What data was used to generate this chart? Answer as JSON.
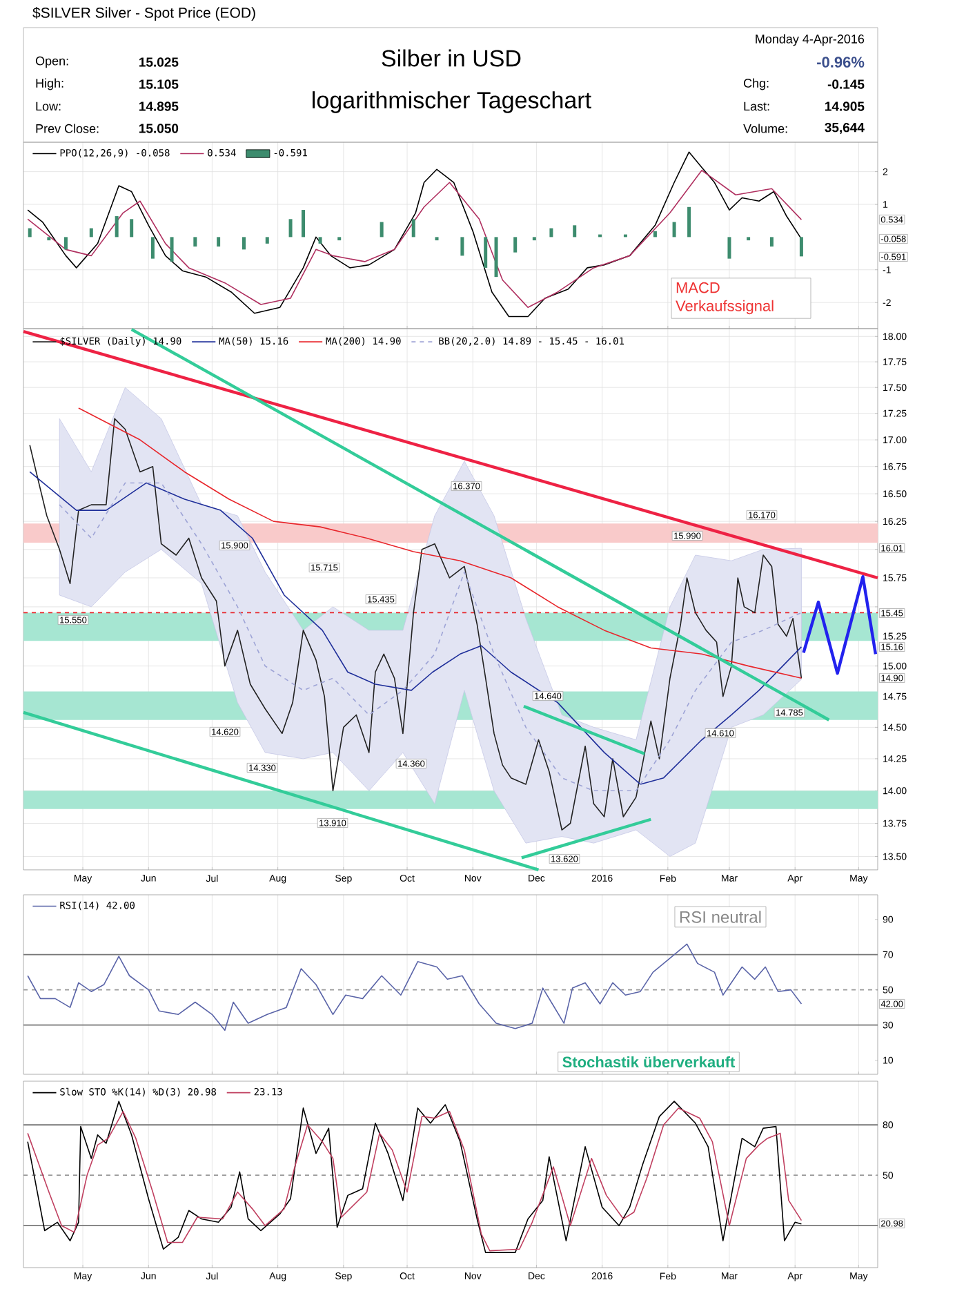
{
  "chart_data": [
    {
      "type": "line",
      "title": "Silber in USD",
      "subtitle": "logarithmischer Tageschart",
      "xlim": [
        "2015-04-03",
        "2016-05-10"
      ],
      "xticks": [
        {
          "value": "2015-05-01",
          "label": null
        },
        {
          "value": "2015-06-01",
          "label": null
        },
        {
          "value": "2015-07-01",
          "label": null
        },
        {
          "value": "2015-08-01",
          "label": null
        },
        {
          "value": "2015-09-01",
          "label": null
        },
        {
          "value": "2015-10-01",
          "label": null
        },
        {
          "value": "2015-11-01",
          "label": null
        },
        {
          "value": "2015-12-01",
          "label": null
        },
        {
          "value": "2016-01-01",
          "label": null
        },
        {
          "value": "2016-02-01",
          "label": null
        },
        {
          "value": "2016-03-01",
          "label": null
        },
        {
          "value": "2016-04-01",
          "label": null
        },
        {
          "value": "2016-05-01",
          "label": null
        }
      ],
      "ylim": [
        -2.8,
        2.9
      ],
      "yticks": [
        -2,
        -1,
        1,
        2
      ],
      "tick_labels": "y",
      "grid": true,
      "legend": "top left",
      "series": [
        {
          "name": "PPO(12,26,9) -0.058",
          "color": "#000000",
          "x": [
            "2015-04-05",
            "2015-04-12",
            "2015-04-23",
            "2015-04-28",
            "2015-05-08",
            "2015-05-18",
            "2015-05-24",
            "2015-06-01",
            "2015-06-09",
            "2015-06-17",
            "2015-06-28",
            "2015-07-10",
            "2015-07-21",
            "2015-08-02",
            "2015-08-13",
            "2015-08-19",
            "2015-08-26",
            "2015-09-04",
            "2015-09-13",
            "2015-09-25",
            "2015-10-05",
            "2015-10-09",
            "2015-10-15",
            "2015-10-23",
            "2015-11-01",
            "2015-11-10",
            "2015-11-18",
            "2015-11-27",
            "2015-12-05",
            "2015-12-16",
            "2015-12-25",
            "2016-01-02",
            "2016-01-14",
            "2016-01-26",
            "2016-02-04",
            "2016-02-11",
            "2016-02-17",
            "2016-02-23",
            "2016-03-01",
            "2016-03-07",
            "2016-03-15",
            "2016-03-22",
            "2016-03-28",
            "2016-04-04"
          ],
          "values": [
            0.83,
            0.46,
            -0.57,
            -0.94,
            -0.2,
            1.57,
            1.39,
            0.36,
            -0.57,
            -1.03,
            -1.22,
            -1.68,
            -2.33,
            -2.15,
            -0.94,
            0.0,
            -0.57,
            -0.94,
            -0.85,
            -0.38,
            0.74,
            1.67,
            2.07,
            1.67,
            0.18,
            -1.68,
            -2.43,
            -2.43,
            -1.87,
            -1.59,
            -0.94,
            -0.85,
            -0.57,
            0.36,
            1.67,
            2.6,
            2.13,
            1.67,
            0.83,
            1.2,
            1.1,
            1.39,
            0.64,
            -0.058
          ]
        },
        {
          "name": "0.534",
          "color": "#b03060",
          "x": [
            "2015-04-05",
            "2015-04-23",
            "2015-05-05",
            "2015-05-20",
            "2015-05-28",
            "2015-06-09",
            "2015-06-20",
            "2015-07-07",
            "2015-07-24",
            "2015-08-07",
            "2015-08-19",
            "2015-08-27",
            "2015-09-11",
            "2015-09-25",
            "2015-10-09",
            "2015-10-21",
            "2015-11-04",
            "2015-11-15",
            "2015-11-27",
            "2015-12-11",
            "2015-12-28",
            "2016-01-14",
            "2016-02-02",
            "2016-02-17",
            "2016-03-04",
            "2016-03-21",
            "2016-04-04"
          ],
          "values": [
            0.55,
            -0.38,
            -0.57,
            0.74,
            1.1,
            -0.2,
            -0.94,
            -1.4,
            -2.06,
            -1.87,
            -0.38,
            -0.57,
            -0.75,
            -0.38,
            0.92,
            1.67,
            0.55,
            -1.31,
            -2.15,
            -1.68,
            -0.94,
            -0.57,
            0.74,
            2.04,
            1.29,
            1.48,
            0.534
          ]
        },
        {
          "name": "-0.591",
          "type": "bar",
          "color": "#3d8c6e",
          "x": [
            "2015-04-06",
            "2015-04-15",
            "2015-04-23",
            "2015-05-05",
            "2015-05-17",
            "2015-05-24",
            "2015-06-03",
            "2015-06-12",
            "2015-06-23",
            "2015-07-04",
            "2015-07-16",
            "2015-07-27",
            "2015-08-07",
            "2015-08-13",
            "2015-08-21",
            "2015-08-30",
            "2015-09-11",
            "2015-09-19",
            "2015-10-04",
            "2015-10-15",
            "2015-10-27",
            "2015-11-07",
            "2015-11-12",
            "2015-11-21",
            "2015-11-30",
            "2015-12-08",
            "2015-12-19",
            "2015-12-31",
            "2016-01-12",
            "2016-01-26",
            "2016-02-04",
            "2016-02-11",
            "2016-02-20",
            "2016-03-01",
            "2016-03-10",
            "2016-03-21",
            "2016-04-04"
          ],
          "values": [
            0.27,
            -0.1,
            -0.38,
            0.27,
            0.64,
            0.55,
            -0.66,
            -0.75,
            -0.29,
            -0.29,
            -0.38,
            -0.2,
            0.55,
            0.83,
            -0.2,
            -0.1,
            0.0,
            0.46,
            0.55,
            -0.1,
            -0.57,
            -0.94,
            -1.22,
            -0.47,
            -0.1,
            0.27,
            0.36,
            0.08,
            0.08,
            0.18,
            0.46,
            0.92,
            0.0,
            -0.66,
            -0.1,
            -0.29,
            -0.591
          ]
        }
      ],
      "annotations": [
        "$SILVER Silver - Spot Price (EOD)",
        "Open:",
        "15.025",
        "High:",
        "15.105",
        "Low:",
        "14.895",
        "Prev Close:",
        "15.050",
        "Monday 4-Apr-2016",
        "-0.96%",
        "Chg:",
        "-0.145",
        "Last:",
        "14.905",
        "Volume:",
        "35,644",
        "MACD Verkaufssignal",
        "0.534",
        "-0.058",
        "-0.591"
      ]
    },
    {
      "type": "line",
      "log": true,
      "xlim": [
        "2015-04-03",
        "2016-05-10"
      ],
      "xticks": [
        {
          "value": "2015-05-01",
          "label": "May"
        },
        {
          "value": "2015-06-01",
          "label": "Jun"
        },
        {
          "value": "2015-07-01",
          "label": "Jul"
        },
        {
          "value": "2015-08-01",
          "label": "Aug"
        },
        {
          "value": "2015-09-01",
          "label": "Sep"
        },
        {
          "value": "2015-10-01",
          "label": "Oct"
        },
        {
          "value": "2015-11-01",
          "label": "Nov"
        },
        {
          "value": "2015-12-01",
          "label": "Dec"
        },
        {
          "value": "2016-01-01",
          "label": "2016"
        },
        {
          "value": "2016-02-01",
          "label": "Feb"
        },
        {
          "value": "2016-03-01",
          "label": "Mar"
        },
        {
          "value": "2016-04-01",
          "label": "Apr"
        },
        {
          "value": "2016-05-01",
          "label": "May"
        }
      ],
      "ylim": [
        13.4,
        18.08
      ],
      "yticks": [
        {
          "value": 13.5,
          "label": "13.50"
        },
        {
          "value": 13.75,
          "label": "13.75"
        },
        {
          "value": 14.0,
          "label": "14.00"
        },
        {
          "value": 14.25,
          "label": "14.25"
        },
        {
          "value": 14.5,
          "label": "14.50"
        },
        {
          "value": 14.75,
          "label": "14.75"
        },
        {
          "value": 15.0,
          "label": "15.00"
        },
        {
          "value": 15.25,
          "label": "15.25"
        },
        {
          "value": 15.5,
          "label": null
        },
        {
          "value": 15.75,
          "label": "15.75"
        },
        {
          "value": 16.0,
          "label": null
        },
        {
          "value": 16.25,
          "label": "16.25"
        },
        {
          "value": 16.5,
          "label": "16.50"
        },
        {
          "value": 16.75,
          "label": "16.75"
        },
        {
          "value": 17.0,
          "label": "17.00"
        },
        {
          "value": 17.25,
          "label": "17.25"
        },
        {
          "value": 17.5,
          "label": "17.50"
        },
        {
          "value": 17.75,
          "label": "17.75"
        },
        {
          "value": 18.0,
          "label": "18.00"
        }
      ],
      "grid": true,
      "legend": "top left",
      "bands": [
        {
          "axis": "y",
          "from": 16.06,
          "to": 16.23,
          "color": "#f9caca"
        },
        {
          "axis": "y",
          "from": 15.21,
          "to": 15.45,
          "color": "#a6e6d2"
        },
        {
          "axis": "y",
          "from": 14.56,
          "to": 14.79,
          "color": "#a6e6d2"
        },
        {
          "axis": "y",
          "from": 13.86,
          "to": 14.0,
          "color": "#a6e6d2"
        }
      ],
      "ref_lines": [
        {
          "axis": "y",
          "value": 15.45,
          "color": "#e8262b",
          "line_style": "dashed"
        }
      ],
      "series": [
        {
          "name": "$SILVER (Daily) 14.90",
          "color": "#222222",
          "x": [
            "2015-04-06",
            "2015-04-09",
            "2015-04-14",
            "2015-04-20",
            "2015-04-25",
            "2015-04-29",
            "2015-05-05",
            "2015-05-12",
            "2015-05-16",
            "2015-05-21",
            "2015-05-28",
            "2015-06-03",
            "2015-06-07",
            "2015-06-14",
            "2015-06-20",
            "2015-06-26",
            "2015-07-03",
            "2015-07-07",
            "2015-07-13",
            "2015-07-19",
            "2015-07-26",
            "2015-08-03",
            "2015-08-08",
            "2015-08-13",
            "2015-08-19",
            "2015-08-23",
            "2015-08-27",
            "2015-09-01",
            "2015-09-07",
            "2015-09-13",
            "2015-09-16",
            "2015-09-20",
            "2015-09-25",
            "2015-09-29",
            "2015-10-04",
            "2015-10-08",
            "2015-10-14",
            "2015-10-21",
            "2015-10-28",
            "2015-10-31",
            "2015-11-03",
            "2015-11-07",
            "2015-11-11",
            "2015-11-15",
            "2015-11-19",
            "2015-11-26",
            "2015-12-02",
            "2015-12-07",
            "2015-12-13",
            "2015-12-17",
            "2015-12-24",
            "2015-12-28",
            "2016-01-02",
            "2016-01-06",
            "2016-01-11",
            "2016-01-17",
            "2016-01-24",
            "2016-01-28",
            "2016-02-02",
            "2016-02-07",
            "2016-02-10",
            "2016-02-14",
            "2016-02-19",
            "2016-02-24",
            "2016-02-27",
            "2016-03-02",
            "2016-03-05",
            "2016-03-08",
            "2016-03-13",
            "2016-03-17",
            "2016-03-21",
            "2016-03-24",
            "2016-03-28",
            "2016-03-31",
            "2016-04-04"
          ],
          "values": [
            16.95,
            16.7,
            16.3,
            16.0,
            15.7,
            16.35,
            16.4,
            16.4,
            17.2,
            17.1,
            16.7,
            16.75,
            16.05,
            15.95,
            16.1,
            15.75,
            15.55,
            15.0,
            15.3,
            14.85,
            14.65,
            14.45,
            14.7,
            15.3,
            15.05,
            14.75,
            14.0,
            14.5,
            14.6,
            14.3,
            14.95,
            15.1,
            14.9,
            14.45,
            15.45,
            16.0,
            16.05,
            15.75,
            15.85,
            15.6,
            15.35,
            14.9,
            14.45,
            14.2,
            14.1,
            14.05,
            14.4,
            14.15,
            13.7,
            13.75,
            14.35,
            13.9,
            13.8,
            14.25,
            13.8,
            13.95,
            14.55,
            14.25,
            14.9,
            15.35,
            15.75,
            15.45,
            15.3,
            15.2,
            14.75,
            15.0,
            15.75,
            15.5,
            15.45,
            15.95,
            15.85,
            15.35,
            15.25,
            15.4,
            14.9
          ]
        },
        {
          "name": "MA(50) 15.16",
          "color": "#1f2f9a",
          "x": [
            "2015-04-06",
            "2015-04-28",
            "2015-05-12",
            "2015-05-31",
            "2015-06-18",
            "2015-07-05",
            "2015-07-20",
            "2015-08-04",
            "2015-08-22",
            "2015-09-03",
            "2015-09-16",
            "2015-10-03",
            "2015-10-13",
            "2015-10-26",
            "2015-11-05",
            "2015-11-19",
            "2015-12-11",
            "2016-01-02",
            "2016-01-19",
            "2016-01-30",
            "2016-02-17",
            "2016-03-02",
            "2016-03-15",
            "2016-04-04"
          ],
          "values": [
            16.7,
            16.35,
            16.35,
            16.6,
            16.45,
            16.35,
            16.1,
            15.6,
            15.3,
            14.95,
            14.85,
            14.8,
            14.95,
            15.1,
            15.17,
            14.95,
            14.7,
            14.3,
            14.05,
            14.1,
            14.4,
            14.6,
            14.8,
            15.16
          ]
        },
        {
          "name": "MA(200) 14.90",
          "color": "#e8262b",
          "x": [
            "2015-04-29",
            "2015-05-28",
            "2015-06-18",
            "2015-07-09",
            "2015-07-30",
            "2015-08-21",
            "2015-09-12",
            "2015-10-04",
            "2015-10-26",
            "2015-11-19",
            "2015-12-11",
            "2016-01-02",
            "2016-01-24",
            "2016-02-17",
            "2016-03-10",
            "2016-04-04"
          ],
          "values": [
            17.3,
            17.0,
            16.7,
            16.45,
            16.25,
            16.2,
            16.1,
            15.98,
            15.9,
            15.75,
            15.5,
            15.3,
            15.15,
            15.1,
            15.0,
            14.9
          ]
        },
        {
          "name": "BB(20,2.0) 14.89 - 15.45 - 16.01",
          "color": "#9ea4d6",
          "line_style": "dashed",
          "x": [
            "2015-04-20",
            "2015-05-05",
            "2015-05-21",
            "2015-06-07",
            "2015-06-26",
            "2015-07-13",
            "2015-07-26",
            "2015-08-13",
            "2015-08-27",
            "2015-09-13",
            "2015-09-29",
            "2015-10-14",
            "2015-10-28",
            "2015-11-11",
            "2015-11-26",
            "2015-12-13",
            "2015-12-28",
            "2016-01-17",
            "2016-02-02",
            "2016-02-14",
            "2016-03-02",
            "2016-03-17",
            "2016-04-04"
          ],
          "values": [
            16.4,
            16.1,
            16.6,
            16.6,
            16.05,
            15.5,
            15.0,
            14.8,
            14.9,
            14.6,
            14.8,
            15.1,
            15.8,
            15.1,
            14.5,
            14.1,
            14.0,
            14.0,
            14.4,
            14.8,
            15.2,
            15.3,
            15.45
          ],
          "lower": [
            15.6,
            15.5,
            15.8,
            16.0,
            15.7,
            14.7,
            14.3,
            14.25,
            14.3,
            14.0,
            14.3,
            13.9,
            14.8,
            14.0,
            13.6,
            13.65,
            13.6,
            13.7,
            13.5,
            13.6,
            14.5,
            14.6,
            14.89
          ],
          "upper": [
            17.2,
            16.7,
            17.5,
            17.2,
            16.4,
            16.3,
            15.8,
            15.3,
            15.5,
            15.3,
            15.3,
            16.3,
            16.8,
            16.3,
            15.4,
            14.6,
            14.5,
            14.4,
            15.5,
            15.95,
            15.9,
            16.0,
            16.01
          ]
        },
        {
          "color": "#ee2244",
          "x": [
            "2015-04-03",
            "2016-05-10"
          ],
          "values": [
            18.05,
            15.75
          ]
        },
        {
          "color": "#33cc99",
          "x": [
            "2015-05-24",
            "2016-04-17"
          ],
          "values": [
            18.07,
            14.56
          ]
        },
        {
          "color": "#33cc99",
          "x": [
            "2015-04-03",
            "2015-12-02"
          ],
          "values": [
            14.62,
            13.4
          ]
        },
        {
          "color": "#33cc99",
          "x": [
            "2015-11-25",
            "2016-01-21"
          ],
          "values": [
            14.67,
            14.29
          ]
        },
        {
          "color": "#33cc99",
          "x": [
            "2015-11-24",
            "2016-01-24"
          ],
          "values": [
            13.49,
            13.78
          ]
        },
        {
          "color": "#2222ee",
          "x": [
            "2016-04-05",
            "2016-04-12",
            "2016-04-21",
            "2016-05-03",
            "2016-05-09"
          ],
          "values": [
            15.11,
            15.54,
            14.94,
            15.76,
            15.1
          ]
        }
      ],
      "annotations": [
        "15.550",
        "15.900",
        "15.715",
        "15.435",
        "14.620",
        "14.330",
        "13.910",
        "14.360",
        "16.370",
        "14.640",
        "13.620",
        "15.990",
        "16.170",
        "14.610",
        "14.785",
        "16.01",
        "15.45",
        "15.16",
        "14.90"
      ]
    },
    {
      "type": "line",
      "xlim": [
        "2015-04-03",
        "2016-05-10"
      ],
      "xticks": [
        {
          "value": "2015-05-01",
          "label": null
        },
        {
          "value": "2015-06-01",
          "label": null
        },
        {
          "value": "2015-07-01",
          "label": null
        },
        {
          "value": "2015-08-01",
          "label": null
        },
        {
          "value": "2015-09-01",
          "label": null
        },
        {
          "value": "2015-10-01",
          "label": null
        },
        {
          "value": "2015-11-01",
          "label": null
        },
        {
          "value": "2015-12-01",
          "label": null
        },
        {
          "value": "2016-01-01",
          "label": null
        },
        {
          "value": "2016-02-01",
          "label": null
        },
        {
          "value": "2016-03-01",
          "label": null
        },
        {
          "value": "2016-04-01",
          "label": null
        },
        {
          "value": "2016-05-01",
          "label": null
        }
      ],
      "ylim": [
        2,
        104
      ],
      "yticks": [
        10,
        30,
        50,
        70,
        90
      ],
      "tick_labels": "y",
      "grid": "x",
      "legend": "top left",
      "ref_lines": [
        {
          "axis": "y",
          "value": 30,
          "color": "#777777",
          "line_style": "solid"
        },
        {
          "axis": "y",
          "value": 50,
          "color": "#999999",
          "line_style": "dashed"
        },
        {
          "axis": "y",
          "value": 70,
          "color": "#777777",
          "line_style": "solid"
        }
      ],
      "series": [
        {
          "name": "RSI(14) 42.00",
          "color": "#5a64a8",
          "x": [
            "2015-04-05",
            "2015-04-11",
            "2015-04-18",
            "2015-04-25",
            "2015-04-29",
            "2015-05-05",
            "2015-05-11",
            "2015-05-18",
            "2015-05-23",
            "2015-06-01",
            "2015-06-06",
            "2015-06-15",
            "2015-06-23",
            "2015-07-01",
            "2015-07-07",
            "2015-07-11",
            "2015-07-18",
            "2015-07-27",
            "2015-08-05",
            "2015-08-12",
            "2015-08-19",
            "2015-08-27",
            "2015-09-02",
            "2015-09-10",
            "2015-09-19",
            "2015-09-28",
            "2015-10-06",
            "2015-10-15",
            "2015-10-20",
            "2015-10-27",
            "2015-11-04",
            "2015-11-12",
            "2015-11-21",
            "2015-11-29",
            "2015-12-04",
            "2015-12-08",
            "2015-12-14",
            "2015-12-18",
            "2015-12-24",
            "2015-12-31",
            "2016-01-06",
            "2016-01-12",
            "2016-01-19",
            "2016-01-25",
            "2016-02-01",
            "2016-02-10",
            "2016-02-15",
            "2016-02-23",
            "2016-02-27",
            "2016-03-07",
            "2016-03-13",
            "2016-03-18",
            "2016-03-24",
            "2016-03-30",
            "2016-04-04"
          ],
          "values": [
            58,
            45,
            45,
            40,
            54,
            49,
            53,
            69,
            58,
            50,
            38,
            36,
            43,
            36,
            27,
            43,
            31,
            36,
            40,
            62,
            53,
            36,
            47,
            45,
            58,
            47,
            66,
            63,
            56,
            58,
            42,
            31,
            28,
            31,
            51,
            43,
            31,
            51,
            54,
            42,
            54,
            47,
            49,
            60,
            67,
            76,
            65,
            60,
            47,
            63,
            56,
            63,
            49,
            50,
            42.0
          ]
        }
      ],
      "annotations": [
        "RSI neutral",
        "42.00"
      ]
    },
    {
      "type": "line",
      "xlim": [
        "2015-04-03",
        "2016-05-10"
      ],
      "xticks": [
        {
          "value": "2015-05-01",
          "label": "May"
        },
        {
          "value": "2015-06-01",
          "label": "Jun"
        },
        {
          "value": "2015-07-01",
          "label": "Jul"
        },
        {
          "value": "2015-08-01",
          "label": "Aug"
        },
        {
          "value": "2015-09-01",
          "label": "Sep"
        },
        {
          "value": "2015-10-01",
          "label": "Oct"
        },
        {
          "value": "2015-11-01",
          "label": "Nov"
        },
        {
          "value": "2015-12-01",
          "label": "Dec"
        },
        {
          "value": "2016-01-01",
          "label": "2016"
        },
        {
          "value": "2016-02-01",
          "label": "Feb"
        },
        {
          "value": "2016-03-01",
          "label": "Mar"
        },
        {
          "value": "2016-04-01",
          "label": "Apr"
        },
        {
          "value": "2016-05-01",
          "label": "May"
        }
      ],
      "ylim": [
        -5,
        106
      ],
      "yticks": [
        {
          "value": 20,
          "label": null
        },
        50,
        80
      ],
      "grid": "x",
      "legend": "top left",
      "ref_lines": [
        {
          "axis": "y",
          "value": 20,
          "color": "#777777",
          "line_style": "solid"
        },
        {
          "axis": "y",
          "value": 50,
          "color": "#999999",
          "line_style": "dashed"
        },
        {
          "axis": "y",
          "value": 80,
          "color": "#777777",
          "line_style": "solid"
        }
      ],
      "series": [
        {
          "name": "Slow STO %K(14) %D(3) 20.98",
          "color": "#000000",
          "x": [
            "2015-04-05",
            "2015-04-13",
            "2015-04-19",
            "2015-04-25",
            "2015-04-29",
            "2015-04-30",
            "2015-05-05",
            "2015-05-08",
            "2015-05-12",
            "2015-05-18",
            "2015-05-24",
            "2015-06-01",
            "2015-06-08",
            "2015-06-15",
            "2015-06-20",
            "2015-06-26",
            "2015-07-04",
            "2015-07-10",
            "2015-07-14",
            "2015-07-18",
            "2015-07-24",
            "2015-08-02",
            "2015-08-07",
            "2015-08-13",
            "2015-08-19",
            "2015-08-25",
            "2015-08-29",
            "2015-09-03",
            "2015-09-10",
            "2015-09-16",
            "2015-09-22",
            "2015-09-29",
            "2015-10-06",
            "2015-10-12",
            "2015-10-19",
            "2015-10-26",
            "2015-11-03",
            "2015-11-07",
            "2015-11-21",
            "2015-11-27",
            "2015-12-04",
            "2015-12-07",
            "2015-12-15",
            "2015-12-24",
            "2016-01-01",
            "2016-01-09",
            "2016-01-14",
            "2016-01-20",
            "2016-01-28",
            "2016-02-04",
            "2016-02-14",
            "2016-02-20",
            "2016-02-27",
            "2016-03-07",
            "2016-03-13",
            "2016-03-17",
            "2016-03-23",
            "2016-03-27",
            "2016-04-01",
            "2016-04-04"
          ],
          "values": [
            70,
            17,
            22,
            11,
            22,
            79,
            60,
            74,
            69,
            94,
            74,
            36,
            6,
            13,
            29,
            24,
            22,
            31,
            52,
            24,
            17,
            27,
            36,
            90,
            63,
            78,
            19,
            38,
            42,
            81,
            63,
            35,
            90,
            81,
            92,
            70,
            24,
            4,
            4,
            24,
            35,
            61,
            11,
            67,
            31,
            20,
            31,
            56,
            85,
            94,
            81,
            67,
            11,
            72,
            67,
            78,
            79,
            11,
            22,
            20.98
          ]
        },
        {
          "name": "23.13",
          "color": "#c04060",
          "x": [
            "2015-04-05",
            "2015-04-15",
            "2015-04-21",
            "2015-04-27",
            "2015-05-03",
            "2015-05-08",
            "2015-05-13",
            "2015-05-20",
            "2015-05-26",
            "2015-06-03",
            "2015-06-10",
            "2015-06-17",
            "2015-06-24",
            "2015-07-06",
            "2015-07-13",
            "2015-07-20",
            "2015-07-26",
            "2015-08-04",
            "2015-08-09",
            "2015-08-15",
            "2015-08-22",
            "2015-08-27",
            "2015-08-31",
            "2015-09-12",
            "2015-09-18",
            "2015-09-24",
            "2015-10-01",
            "2015-10-08",
            "2015-10-14",
            "2015-10-21",
            "2015-10-28",
            "2015-11-05",
            "2015-11-09",
            "2015-11-23",
            "2015-11-29",
            "2015-12-06",
            "2015-12-09",
            "2015-12-17",
            "2015-12-27",
            "2016-01-03",
            "2016-01-11",
            "2016-01-16",
            "2016-01-22",
            "2016-01-30",
            "2016-02-06",
            "2016-02-16",
            "2016-02-22",
            "2016-03-01",
            "2016-03-09",
            "2016-03-15",
            "2016-03-19",
            "2016-03-25",
            "2016-03-29",
            "2016-04-04"
          ],
          "values": [
            75,
            40,
            20,
            16,
            50,
            68,
            72,
            88,
            72,
            40,
            10,
            10,
            25,
            24,
            40,
            30,
            20,
            30,
            55,
            80,
            70,
            60,
            25,
            40,
            75,
            65,
            40,
            85,
            84,
            88,
            65,
            15,
            5,
            6,
            22,
            45,
            55,
            20,
            60,
            38,
            24,
            28,
            48,
            80,
            90,
            84,
            70,
            20,
            60,
            68,
            72,
            75,
            35,
            23.13
          ]
        }
      ],
      "annotations": [
        "Stochastik überverkauft",
        "20.98"
      ]
    }
  ]
}
